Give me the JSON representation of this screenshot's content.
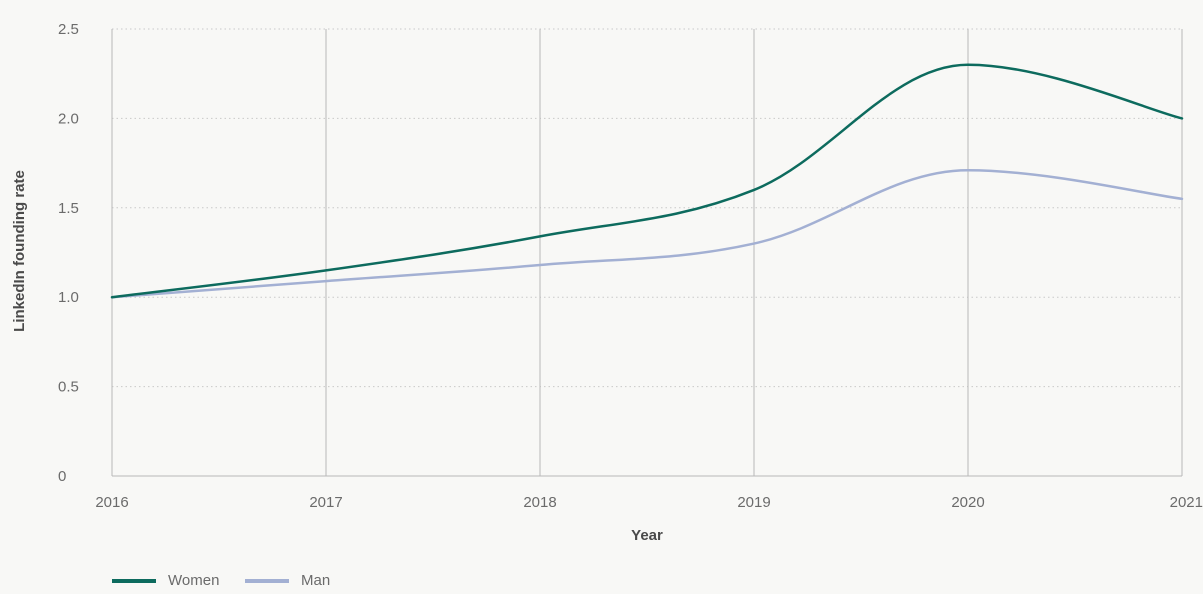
{
  "chart_data": {
    "type": "line",
    "title": "",
    "xlabel": "Year",
    "ylabel": "LinkedIn founding rate",
    "x": [
      2016,
      2017,
      2018,
      2019,
      2020,
      2021
    ],
    "x_tick_labels": [
      "2016",
      "2017",
      "2018",
      "2019",
      "2020",
      "2021"
    ],
    "y_ticks": [
      0,
      0.5,
      1.0,
      1.5,
      2.0,
      2.5
    ],
    "y_tick_labels": [
      "0",
      "0.5",
      "1.0",
      "1.5",
      "2.0",
      "2.5"
    ],
    "ylim": [
      0,
      2.5
    ],
    "xlim": [
      2016,
      2021
    ],
    "grid": {
      "vertical": "solid",
      "horizontal": "dotted"
    },
    "legend_placement": "bottom-left",
    "series": [
      {
        "name": "Women",
        "color": "#0d6b5e",
        "values": [
          1.0,
          1.15,
          1.34,
          1.6,
          2.3,
          2.0
        ]
      },
      {
        "name": "Man",
        "color": "#a3b0d3",
        "values": [
          1.0,
          1.09,
          1.18,
          1.3,
          1.71,
          1.55
        ]
      }
    ]
  }
}
